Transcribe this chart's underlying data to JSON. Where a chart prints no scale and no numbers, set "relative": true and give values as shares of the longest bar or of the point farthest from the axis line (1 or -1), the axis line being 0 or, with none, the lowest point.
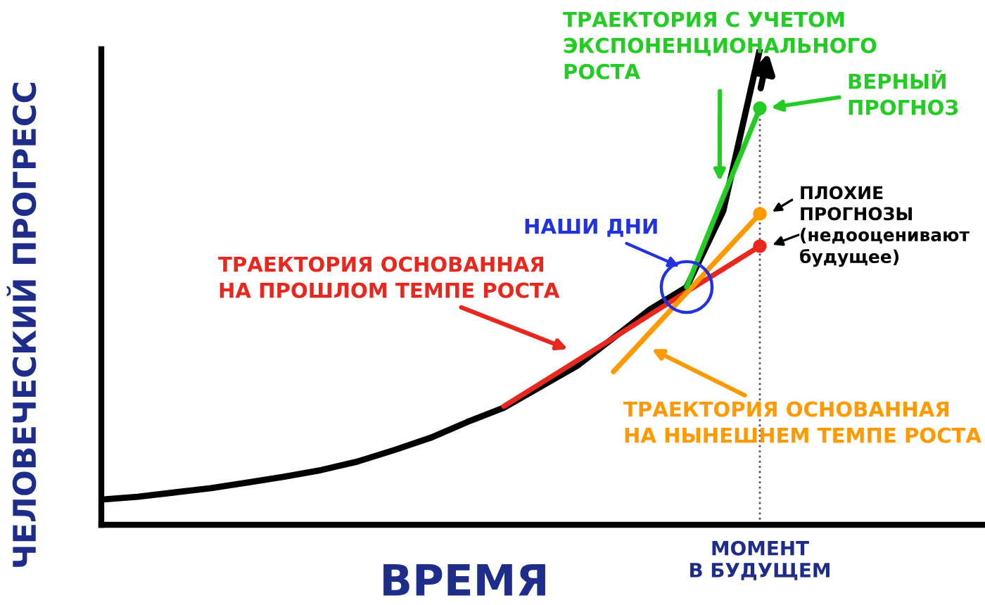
{
  "chart_data": {
    "type": "line",
    "relative": true,
    "xlabel": "ВРЕМЯ",
    "ylabel": "ЧЕЛОВЕЧЕСКИЙ ПРОГРЕСС",
    "categories": [
      null,
      null,
      null,
      null,
      null,
      null,
      null,
      null,
      null,
      null,
      null,
      null,
      null,
      null,
      null,
      null,
      null,
      null,
      null
    ],
    "series": [
      {
        "color": "#000000",
        "values": [
          0.053,
          0.059,
          0.068,
          0.077,
          0.089,
          0.101,
          0.115,
          0.133,
          0.157,
          0.183,
          0.216,
          0.246,
          0.29,
          0.334,
          0.393,
          0.453,
          0.5,
          0.66,
          1.0
        ]
      },
      {
        "name": "ТРАЕКТОРИЯ ОСНОВАННАЯ\nНА ПРОШЛОМ ТЕМПЕ РОСТА",
        "color": "#e8281e",
        "values": [
          null,
          null,
          null,
          null,
          null,
          null,
          null,
          null,
          null,
          null,
          null,
          0.249,
          0.297,
          0.345,
          0.393,
          0.442,
          0.49,
          0.538,
          0.586
        ]
      },
      {
        "name": "ТРАЕКТОРИЯ ОСНОВАННАЯ\nНА НЫНЕШНЕМ ТЕМПЕ РОСТА",
        "color": "#ff9900",
        "values": [
          null,
          null,
          null,
          null,
          null,
          null,
          null,
          null,
          null,
          null,
          null,
          null,
          null,
          null,
          0.322,
          0.405,
          0.488,
          0.571,
          0.654
        ]
      },
      {
        "name": "ТРАЕКТОРИЯ С УЧЕТОМ\nЭКСПОНЕНЦИОНАЛЬНОГО\nРОСТА",
        "color": "#22cc22",
        "values": [
          null,
          null,
          null,
          null,
          null,
          null,
          null,
          null,
          null,
          null,
          null,
          null,
          null,
          null,
          null,
          null,
          0.5,
          0.69,
          0.876
        ]
      }
    ],
    "annotations": [
      "НАШИ ДНИ",
      "ВЕРНЫЙ\nПРОГНОЗ",
      "ПЛОХИЕ\nПРОГНОЗЫ\n(недооценивают\nбудущее)",
      "МОМЕНТ\nВ БУДУЩЕМ"
    ]
  }
}
